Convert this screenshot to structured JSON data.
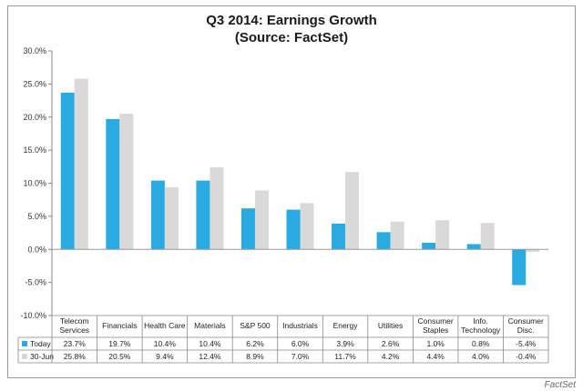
{
  "chart_data": {
    "type": "bar",
    "title": "Q3 2014: Earnings Growth",
    "subtitle": "(Source: FactSet)",
    "categories": [
      "Telecom Services",
      "Financials",
      "Health Care",
      "Materials",
      "S&P 500",
      "Industrials",
      "Energy",
      "Utilities",
      "Consumer Staples",
      "Info. Technology",
      "Consumer Disc."
    ],
    "category_lines": [
      [
        "Telecom",
        "Services"
      ],
      [
        "Financials"
      ],
      [
        "Health Care"
      ],
      [
        "Materials"
      ],
      [
        "S&P 500"
      ],
      [
        "Industrials"
      ],
      [
        "Energy"
      ],
      [
        "Utilities"
      ],
      [
        "Consumer",
        "Staples"
      ],
      [
        "Info.",
        "Technology"
      ],
      [
        "Consumer",
        "Disc."
      ]
    ],
    "series": [
      {
        "name": "Today",
        "color": "#29abe2",
        "values": [
          23.7,
          19.7,
          10.4,
          10.4,
          6.2,
          6.0,
          3.9,
          2.6,
          1.0,
          0.8,
          -5.4
        ],
        "labels": [
          "23.7%",
          "19.7%",
          "10.4%",
          "10.4%",
          "6.2%",
          "6.0%",
          "3.9%",
          "2.6%",
          "1.0%",
          "0.8%",
          "-5.4%"
        ]
      },
      {
        "name": "30-Jun",
        "color": "#d9d9d9",
        "values": [
          25.8,
          20.5,
          9.4,
          12.4,
          8.9,
          7.0,
          11.7,
          4.2,
          4.4,
          4.0,
          -0.4
        ],
        "labels": [
          "25.8%",
          "20.5%",
          "9.4%",
          "12.4%",
          "8.9%",
          "7.0%",
          "11.7%",
          "4.2%",
          "4.4%",
          "4.0%",
          "-0.4%"
        ]
      }
    ],
    "yticks": [
      30,
      25,
      20,
      15,
      10,
      5,
      0,
      -5,
      -10
    ],
    "ytick_labels": [
      "30.0%",
      "25.0%",
      "20.0%",
      "15.0%",
      "10.0%",
      "5.0%",
      "0.0%",
      "-5.0%",
      "-10.0%"
    ],
    "ylim": [
      -10,
      30
    ],
    "legend": "data table below chart",
    "grid": false
  },
  "watermark": "FactSet"
}
